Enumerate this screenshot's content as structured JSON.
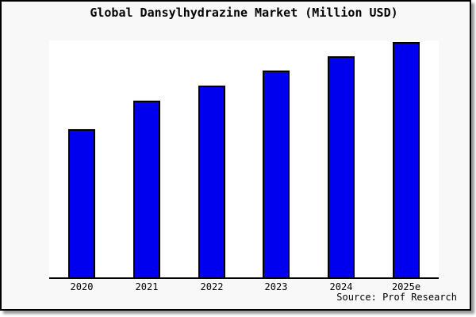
{
  "title": "Global Dansylhydrazine Market (Million USD)",
  "source_note": "Source: Prof Research",
  "colors": {
    "bar_fill": "#0000ee",
    "bar_border": "#000000",
    "window_background": "#f8f8f8",
    "plot_background": "#ffffff",
    "axis_line": "#000000",
    "text": "#000000"
  },
  "chart_data": {
    "type": "bar",
    "title": "Global Dansylhydrazine Market (Million USD)",
    "categories": [
      "2020",
      "2021",
      "2022",
      "2023",
      "2024",
      "2025e"
    ],
    "values": [
      62.8,
      75.2,
      81.5,
      87.9,
      94.0,
      100.0
    ],
    "values_note": "No y-axis ticks or gridlines are shown; values are estimated bar heights as a percentage of the tallest bar (2025e = 100)",
    "xlabel": "",
    "ylabel": "",
    "ylim": [
      0,
      100
    ],
    "grid": false,
    "legend": false,
    "bar_color": "#0000ee",
    "bar_border_color": "#000000",
    "source": "Source: Prof Research"
  }
}
